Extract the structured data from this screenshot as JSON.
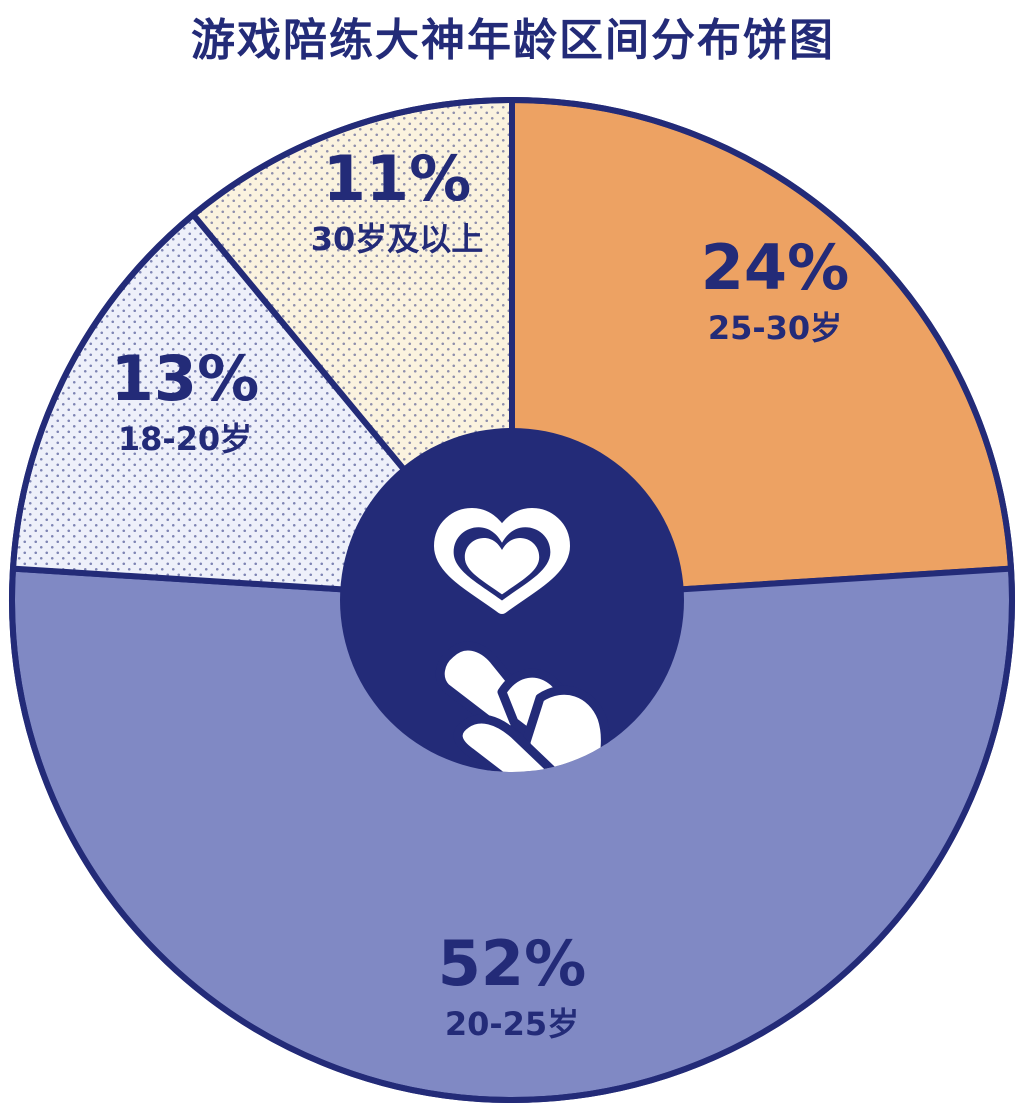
{
  "colors": {
    "navy": "#232b78",
    "orange": "#eda263",
    "periwinkle": "#8089c4",
    "cream": "#fbf3df",
    "pale_blue": "#eef0fa",
    "white": "#ffffff"
  },
  "center_icons": [
    "heart-icon",
    "finger-heart-icon"
  ],
  "chart_data": {
    "type": "pie",
    "title": "游戏陪练大神年龄区间分布饼图",
    "start_angle_deg": 0,
    "direction": "clockwise",
    "center_hole": true,
    "slices": [
      {
        "label": "25-30岁",
        "value": 24,
        "value_label": "24%",
        "fill": "#eda263",
        "pattern": "none"
      },
      {
        "label": "20-25岁",
        "value": 52,
        "value_label": "52%",
        "fill": "#8089c4",
        "pattern": "none"
      },
      {
        "label": "18-20岁",
        "value": 13,
        "value_label": "13%",
        "fill": "#eef0fa",
        "pattern": "dots"
      },
      {
        "label": "30岁及以上",
        "value": 11,
        "value_label": "11%",
        "fill": "#fbf3df",
        "pattern": "dots"
      }
    ]
  }
}
